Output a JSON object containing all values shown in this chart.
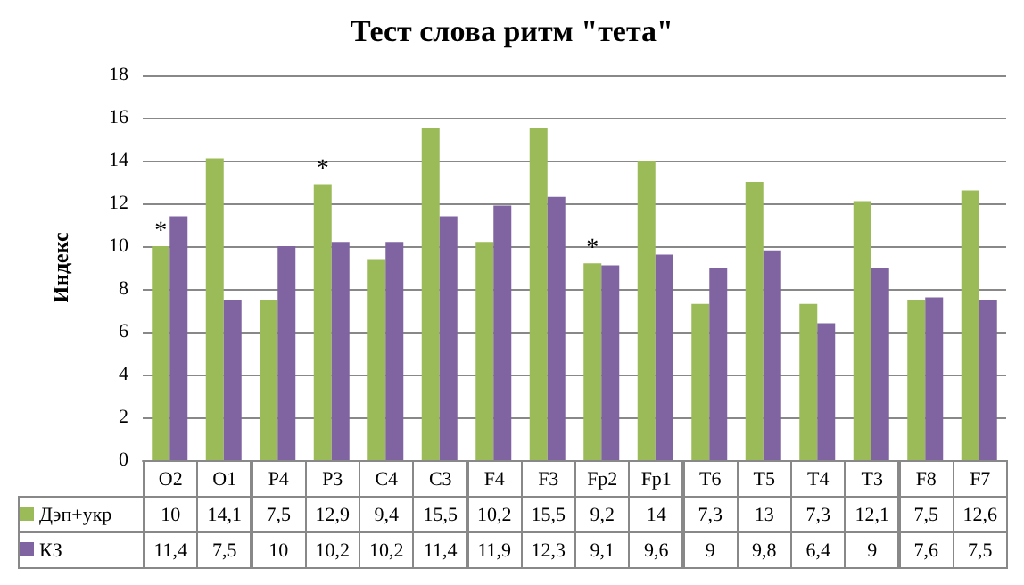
{
  "chart_data": {
    "type": "bar",
    "title": "Тест слова ритм \"тета\"",
    "ylabel": "Индекс",
    "categories": [
      "O2",
      "O1",
      "P4",
      "P3",
      "C4",
      "C3",
      "F4",
      "F3",
      "Fp2",
      "Fp1",
      "T6",
      "T5",
      "T4",
      "T3",
      "F8",
      "F7"
    ],
    "series": [
      {
        "name": "Дэп+укр",
        "color": "#9bbb59",
        "values": [
          10,
          14.1,
          7.5,
          12.9,
          9.4,
          15.5,
          10.2,
          15.5,
          9.2,
          14,
          7.3,
          13,
          7.3,
          12.1,
          7.5,
          12.6
        ],
        "value_labels": [
          "10",
          "14,1",
          "7,5",
          "12,9",
          "9,4",
          "15,5",
          "10,2",
          "15,5",
          "9,2",
          "14",
          "7,3",
          "13",
          "7,3",
          "12,1",
          "7,5",
          "12,6"
        ]
      },
      {
        "name": "КЗ",
        "color": "#8064a2",
        "values": [
          11.4,
          7.5,
          10,
          10.2,
          10.2,
          11.4,
          11.9,
          12.3,
          9.1,
          9.6,
          9,
          9.8,
          6.4,
          9,
          7.6,
          7.5
        ],
        "value_labels": [
          "11,4",
          "7,5",
          "10",
          "10,2",
          "10,2",
          "11,4",
          "11,9",
          "12,3",
          "9,1",
          "9,6",
          "9",
          "9,8",
          "6,4",
          "9",
          "7,6",
          "7,5"
        ]
      }
    ],
    "ylim": [
      0,
      18
    ],
    "yticks": [
      0,
      2,
      4,
      6,
      8,
      10,
      12,
      14,
      16,
      18
    ],
    "grid": "y",
    "legend": "bottom",
    "annotations": [
      {
        "text": "*",
        "x": "O2",
        "y": 10
      },
      {
        "text": "*",
        "x": "P3",
        "y": 12.9
      },
      {
        "text": "*",
        "x": "Fp2",
        "y": 9.2
      }
    ]
  }
}
